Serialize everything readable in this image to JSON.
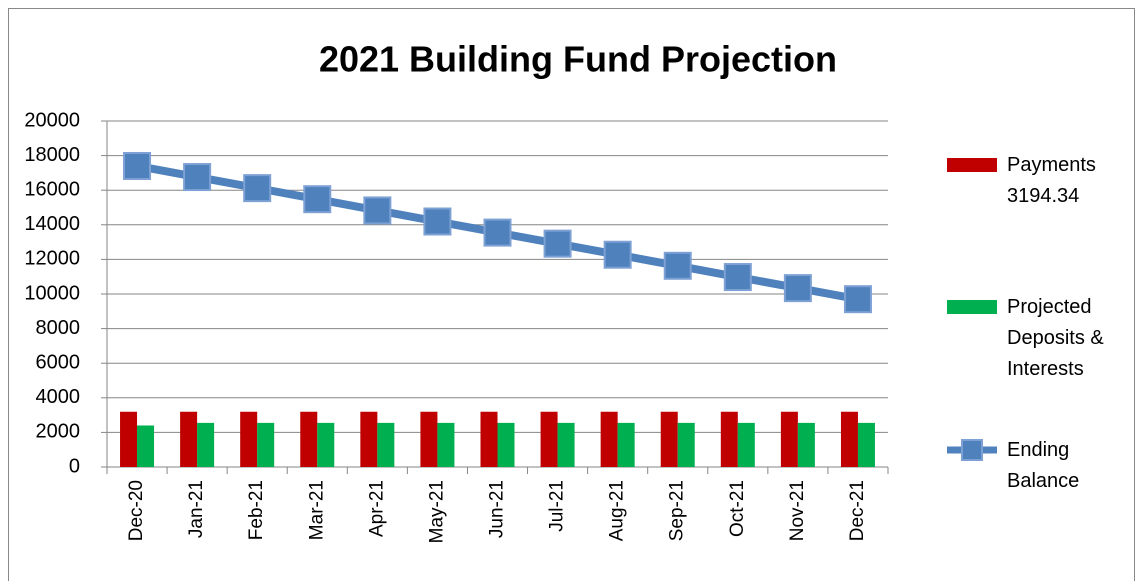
{
  "chart_data": {
    "type": "bar",
    "title": "2021 Building Fund Projection",
    "categories": [
      "Dec-20",
      "Jan-21",
      "Feb-21",
      "Mar-21",
      "Apr-21",
      "May-21",
      "Jun-21",
      "Jul-21",
      "Aug-21",
      "Sep-21",
      "Oct-21",
      "Nov-21",
      "Dec-21"
    ],
    "series": [
      {
        "name": "Payments 3194.34",
        "type": "bar",
        "color": "#c00000",
        "values": [
          3194.34,
          3194.34,
          3194.34,
          3194.34,
          3194.34,
          3194.34,
          3194.34,
          3194.34,
          3194.34,
          3194.34,
          3194.34,
          3194.34,
          3194.34
        ]
      },
      {
        "name": "Projected Deposits & Interests",
        "type": "bar",
        "color": "#00b050",
        "values": [
          2400,
          2550,
          2550,
          2550,
          2550,
          2550,
          2550,
          2550,
          2550,
          2550,
          2550,
          2550,
          2550
        ]
      },
      {
        "name": "Ending Balance",
        "type": "line",
        "color": "#4f81bd",
        "values": [
          17400,
          16760,
          16120,
          15480,
          14830,
          14190,
          13550,
          12910,
          12270,
          11630,
          10980,
          10340,
          9700
        ]
      }
    ],
    "ylim": [
      0,
      20000
    ],
    "yticks": [
      0,
      2000,
      4000,
      6000,
      8000,
      10000,
      12000,
      14000,
      16000,
      18000,
      20000
    ],
    "grid": true,
    "legend": "right"
  }
}
